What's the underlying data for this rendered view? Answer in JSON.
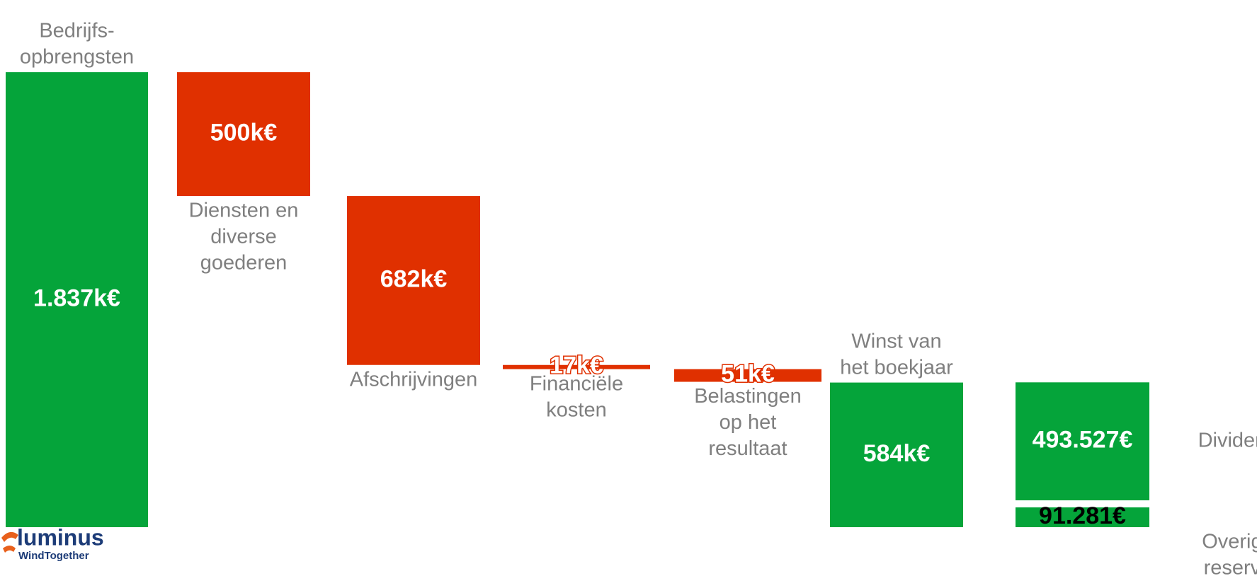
{
  "chart_data": {
    "type": "waterfall",
    "categories": [
      [
        "Bedrijfs-",
        "opbrengsten"
      ],
      [
        "Diensten en",
        "diverse",
        "goederen"
      ],
      [
        "Afschrijvingen"
      ],
      [
        "Financiële",
        "kosten"
      ],
      [
        "Belastingen",
        "op het",
        "resultaat"
      ],
      [
        "Winst van",
        "het boekjaar"
      ],
      [
        "Dividend"
      ],
      [
        "Overige",
        "reserve"
      ]
    ],
    "values": [
      1837,
      500,
      682,
      17,
      51,
      584,
      493.527,
      91.281
    ],
    "value_labels": [
      "1.837k€",
      "500k€",
      "682k€",
      "17k€",
      "51k€",
      "584k€",
      "493.527€",
      "91.281€"
    ],
    "colors": [
      "#05a43a",
      "#e03000",
      "#e03000",
      "#e03000",
      "#e03000",
      "#05a43a",
      "#05a43a",
      "#05a43a"
    ]
  },
  "logo": {
    "name": "luminus",
    "tagline": "WindTogether"
  }
}
